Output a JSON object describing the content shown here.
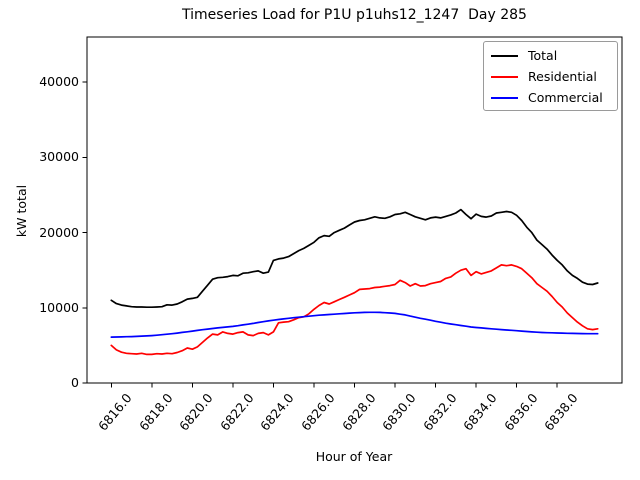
{
  "figure": {
    "title": "Timeseries Load for P1U p1uhs12_1247  Day 285",
    "xlabel": "Hour of Year",
    "ylabel": "kW total"
  },
  "chart_data": {
    "type": "line",
    "title": "Timeseries Load for P1U p1uhs12_1247  Day 285",
    "xlabel": "Hour of Year",
    "ylabel": "kW total",
    "xlim": [
      6814.8,
      6841.2
    ],
    "ylim": [
      0,
      46000
    ],
    "grid": false,
    "legend_position": "upper right",
    "x_ticks": [
      {
        "value": 6816,
        "label": "6816.0"
      },
      {
        "value": 6818,
        "label": "6818.0"
      },
      {
        "value": 6820,
        "label": "6820.0"
      },
      {
        "value": 6822,
        "label": "6822.0"
      },
      {
        "value": 6824,
        "label": "6824.0"
      },
      {
        "value": 6826,
        "label": "6826.0"
      },
      {
        "value": 6828,
        "label": "6828.0"
      },
      {
        "value": 6830,
        "label": "6830.0"
      },
      {
        "value": 6832,
        "label": "6832.0"
      },
      {
        "value": 6834,
        "label": "6834.0"
      },
      {
        "value": 6836,
        "label": "6836.0"
      },
      {
        "value": 6838,
        "label": "6838.0"
      }
    ],
    "y_ticks": [
      {
        "value": 0,
        "label": "0"
      },
      {
        "value": 10000,
        "label": "10000"
      },
      {
        "value": 20000,
        "label": "20000"
      },
      {
        "value": 30000,
        "label": "30000"
      },
      {
        "value": 40000,
        "label": "40000"
      }
    ],
    "x": [
      6816.0,
      6816.25,
      6816.5,
      6816.75,
      6817.0,
      6817.25,
      6817.5,
      6817.75,
      6818.0,
      6818.25,
      6818.5,
      6818.75,
      6819.0,
      6819.25,
      6819.5,
      6819.75,
      6820.0,
      6820.25,
      6820.5,
      6820.75,
      6821.0,
      6821.25,
      6821.5,
      6821.75,
      6822.0,
      6822.25,
      6822.5,
      6822.75,
      6823.0,
      6823.25,
      6823.5,
      6823.75,
      6824.0,
      6824.25,
      6824.5,
      6824.75,
      6825.0,
      6825.25,
      6825.5,
      6825.75,
      6826.0,
      6826.25,
      6826.5,
      6826.75,
      6827.0,
      6827.25,
      6827.5,
      6827.75,
      6828.0,
      6828.25,
      6828.5,
      6828.75,
      6829.0,
      6829.25,
      6829.5,
      6829.75,
      6830.0,
      6830.25,
      6830.5,
      6830.75,
      6831.0,
      6831.25,
      6831.5,
      6831.75,
      6832.0,
      6832.25,
      6832.5,
      6832.75,
      6833.0,
      6833.25,
      6833.5,
      6833.75,
      6834.0,
      6834.25,
      6834.5,
      6834.75,
      6835.0,
      6835.25,
      6835.5,
      6835.75,
      6836.0,
      6836.25,
      6836.5,
      6836.75,
      6837.0,
      6837.25,
      6837.5,
      6837.75,
      6838.0,
      6838.25,
      6838.5,
      6838.75,
      6839.0,
      6839.25,
      6839.5,
      6839.75,
      6840.0
    ],
    "series": [
      {
        "name": "Total",
        "color": "#000000",
        "values": [
          11000,
          10550,
          10350,
          10250,
          10150,
          10100,
          10100,
          10080,
          10080,
          10100,
          10150,
          10400,
          10350,
          10500,
          10800,
          11150,
          11250,
          11400,
          12200,
          13000,
          13800,
          14000,
          14050,
          14150,
          14300,
          14250,
          14600,
          14650,
          14800,
          14900,
          14600,
          14750,
          16300,
          16500,
          16600,
          16800,
          17200,
          17600,
          17900,
          18300,
          18700,
          19300,
          19600,
          19500,
          20000,
          20300,
          20600,
          21000,
          21400,
          21600,
          21700,
          21900,
          22100,
          21950,
          21900,
          22100,
          22400,
          22500,
          22700,
          22400,
          22100,
          21900,
          21700,
          21950,
          22050,
          21950,
          22150,
          22350,
          22600,
          23050,
          22400,
          21850,
          22450,
          22150,
          22050,
          22200,
          22600,
          22700,
          22800,
          22700,
          22300,
          21600,
          20700,
          20000,
          19000,
          18400,
          17800,
          17000,
          16300,
          15700,
          14900,
          14300,
          13900,
          13400,
          13150,
          13100,
          13300
        ]
      },
      {
        "name": "Residential",
        "color": "#ff0000",
        "values": [
          5000,
          4400,
          4100,
          3950,
          3900,
          3850,
          3950,
          3800,
          3800,
          3900,
          3850,
          3950,
          3900,
          4050,
          4300,
          4650,
          4500,
          4800,
          5400,
          6000,
          6500,
          6400,
          6800,
          6600,
          6500,
          6700,
          6800,
          6400,
          6300,
          6600,
          6700,
          6400,
          6800,
          8000,
          8100,
          8150,
          8400,
          8700,
          8800,
          9200,
          9800,
          10300,
          10700,
          10500,
          10800,
          11100,
          11400,
          11700,
          12000,
          12450,
          12500,
          12550,
          12700,
          12750,
          12850,
          12950,
          13100,
          13650,
          13350,
          12900,
          13200,
          12900,
          12950,
          13200,
          13350,
          13500,
          13900,
          14100,
          14600,
          15000,
          15200,
          14300,
          14800,
          14500,
          14700,
          14900,
          15300,
          15700,
          15600,
          15700,
          15500,
          15200,
          14600,
          14000,
          13200,
          12700,
          12200,
          11500,
          10700,
          10100,
          9300,
          8700,
          8100,
          7600,
          7200,
          7100,
          7200
        ]
      },
      {
        "name": "Commercial",
        "color": "#0000ff",
        "values": [
          6100,
          6110,
          6130,
          6150,
          6170,
          6200,
          6230,
          6260,
          6300,
          6360,
          6420,
          6490,
          6560,
          6640,
          6730,
          6810,
          6900,
          6990,
          7080,
          7170,
          7250,
          7320,
          7390,
          7460,
          7520,
          7620,
          7720,
          7820,
          7930,
          8040,
          8150,
          8250,
          8350,
          8440,
          8520,
          8600,
          8680,
          8750,
          8810,
          8880,
          8950,
          9010,
          9060,
          9110,
          9150,
          9200,
          9240,
          9290,
          9330,
          9360,
          9390,
          9400,
          9400,
          9380,
          9340,
          9300,
          9250,
          9150,
          9050,
          8900,
          8750,
          8600,
          8480,
          8350,
          8200,
          8080,
          7950,
          7850,
          7750,
          7650,
          7550,
          7450,
          7380,
          7320,
          7260,
          7200,
          7150,
          7100,
          7050,
          7000,
          6950,
          6900,
          6850,
          6800,
          6760,
          6720,
          6690,
          6670,
          6650,
          6630,
          6610,
          6590,
          6580,
          6570,
          6560,
          6550,
          6550
        ]
      }
    ]
  }
}
